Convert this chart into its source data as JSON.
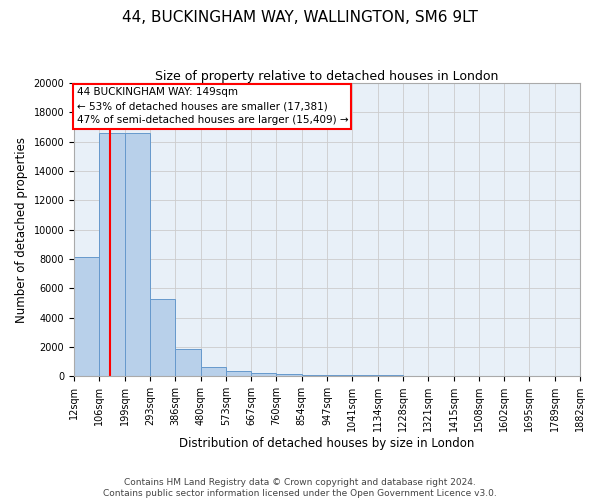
{
  "title": "44, BUCKINGHAM WAY, WALLINGTON, SM6 9LT",
  "subtitle": "Size of property relative to detached houses in London",
  "xlabel": "Distribution of detached houses by size in London",
  "ylabel": "Number of detached properties",
  "footer_line1": "Contains HM Land Registry data © Crown copyright and database right 2024.",
  "footer_line2": "Contains public sector information licensed under the Open Government Licence v3.0.",
  "annotation_line1": "44 BUCKINGHAM WAY: 149sqm",
  "annotation_line2": "← 53% of detached houses are smaller (17,381)",
  "annotation_line3": "47% of semi-detached houses are larger (15,409) →",
  "bar_heights": [
    8100,
    16600,
    16600,
    5300,
    1850,
    650,
    380,
    220,
    150,
    100,
    80,
    60,
    50,
    40,
    30,
    25,
    20,
    15,
    10,
    8
  ],
  "x_tick_labels": [
    "12sqm",
    "106sqm",
    "199sqm",
    "293sqm",
    "386sqm",
    "480sqm",
    "573sqm",
    "667sqm",
    "760sqm",
    "854sqm",
    "947sqm",
    "1041sqm",
    "1134sqm",
    "1228sqm",
    "1321sqm",
    "1415sqm",
    "1508sqm",
    "1602sqm",
    "1695sqm",
    "1789sqm",
    "1882sqm"
  ],
  "bar_color": "#b8d0ea",
  "bar_edge_color": "#6699cc",
  "vline_x": 1.43,
  "vline_color": "red",
  "ylim": [
    0,
    20000
  ],
  "yticks": [
    0,
    2000,
    4000,
    6000,
    8000,
    10000,
    12000,
    14000,
    16000,
    18000,
    20000
  ],
  "grid_color": "#cccccc",
  "bg_color": "#e8f0f8",
  "title_fontsize": 11,
  "subtitle_fontsize": 9,
  "ylabel_fontsize": 8.5,
  "xlabel_fontsize": 8.5,
  "tick_fontsize": 7,
  "annotation_fontsize": 7.5,
  "footer_fontsize": 6.5
}
